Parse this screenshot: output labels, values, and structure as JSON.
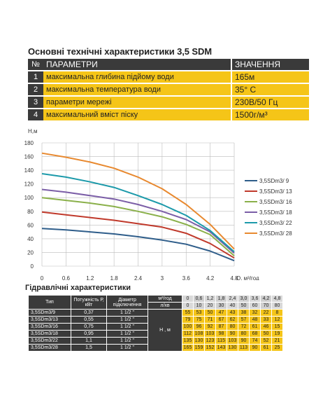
{
  "specs": {
    "title": "Основні технічні характеристики 3,5 SDM",
    "header": {
      "num": "№",
      "param": "ПАРАМЕТРИ",
      "value": "ЗНАЧЕННЯ"
    },
    "rows": [
      {
        "num": "1",
        "param": "максимальна глибина підйому води",
        "value": "165м"
      },
      {
        "num": "2",
        "param": "максимальна температура води",
        "value": "35° С"
      },
      {
        "num": "3",
        "param": "параметри мережі",
        "value": "230В/50 Гц"
      },
      {
        "num": "4",
        "param": "максимальний вміст піску",
        "value": "1500г/м³"
      }
    ]
  },
  "chart_data": {
    "type": "line",
    "ylabel": "H,м",
    "xlabel": "Q, м³/год",
    "y_ticks": [
      "0",
      "20",
      "40",
      "60",
      "80",
      "100",
      "120",
      "140",
      "160",
      "180"
    ],
    "x_ticks": [
      "0",
      "0,6",
      "1,2",
      "1,8",
      "2,4",
      "3",
      "3,6",
      "4,2",
      "4,8"
    ],
    "xlim": [
      0,
      4.8
    ],
    "ylim": [
      0,
      180
    ],
    "grid": true,
    "legend_position": "right",
    "x": [
      0,
      0.6,
      1.2,
      1.8,
      2.4,
      3.0,
      3.6,
      4.2,
      4.8
    ],
    "series": [
      {
        "name": "3,5SDm3/ 9",
        "color": "#2e5d8a",
        "values": [
          55,
          53,
          50,
          47,
          43,
          38,
          32,
          22,
          8
        ]
      },
      {
        "name": "3,5SDm3/ 13",
        "color": "#c0392b",
        "values": [
          79,
          75,
          71,
          67,
          62,
          57,
          48,
          33,
          12
        ]
      },
      {
        "name": "3,5SDm3/ 16",
        "color": "#8ab04a",
        "values": [
          100,
          96,
          92,
          87,
          80,
          72,
          61,
          46,
          15
        ]
      },
      {
        "name": "3,5SDm3/ 18",
        "color": "#7b5ea7",
        "values": [
          112,
          108,
          103,
          98,
          90,
          80,
          68,
          50,
          19
        ]
      },
      {
        "name": "3,5SDm3/ 22",
        "color": "#1c9aaa",
        "values": [
          135,
          130,
          123,
          115,
          103,
          90,
          74,
          52,
          21
        ]
      },
      {
        "name": "3,5SDm3/ 28",
        "color": "#e8892f",
        "values": [
          165,
          159,
          152,
          143,
          130,
          113,
          90,
          61,
          25
        ]
      }
    ]
  },
  "hydraulic": {
    "title": "Гідравлічні характеристики",
    "col_type": "Тип",
    "col_power": "Потужність Р, кВт",
    "col_diam": "Діаметр підключення",
    "unit_m3": "м³/год",
    "unit_ls": "л/хв",
    "unit_h": "Н , м",
    "q_m3": [
      "0",
      "0,6",
      "1,2",
      "1,8",
      "2,4",
      "3,0",
      "3,6",
      "4,2",
      "4,8"
    ],
    "q_ls": [
      "0",
      "10",
      "20",
      "30",
      "40",
      "50",
      "60",
      "70",
      "80"
    ],
    "rows": [
      {
        "type": "3,5SDm3/9",
        "power": "0,37",
        "diam": "1 1/2 \"",
        "h": [
          "55",
          "53",
          "50",
          "47",
          "43",
          "38",
          "32",
          "22",
          "8"
        ]
      },
      {
        "type": "3,5SDm3/13",
        "power": "0,55",
        "diam": "1 1/2 \"",
        "h": [
          "79",
          "75",
          "71",
          "67",
          "62",
          "57",
          "48",
          "33",
          "12"
        ]
      },
      {
        "type": "3,5SDm3/16",
        "power": "0,75",
        "diam": "1 1/2 \"",
        "h": [
          "100",
          "96",
          "92",
          "87",
          "80",
          "72",
          "61",
          "46",
          "15"
        ]
      },
      {
        "type": "3,5SDm3/18",
        "power": "0,95",
        "diam": "1 1/2 \"",
        "h": [
          "112",
          "108",
          "103",
          "98",
          "90",
          "80",
          "68",
          "50",
          "19"
        ]
      },
      {
        "type": "3,5SDm3/22",
        "power": "1,1",
        "diam": "1 1/2 \"",
        "h": [
          "135",
          "130",
          "123",
          "115",
          "103",
          "90",
          "74",
          "52",
          "21"
        ]
      },
      {
        "type": "3,5SDm3/28",
        "power": "1,5",
        "diam": "1 1/2 \"",
        "h": [
          "165",
          "159",
          "152",
          "143",
          "130",
          "113",
          "90",
          "61",
          "25"
        ]
      }
    ]
  }
}
